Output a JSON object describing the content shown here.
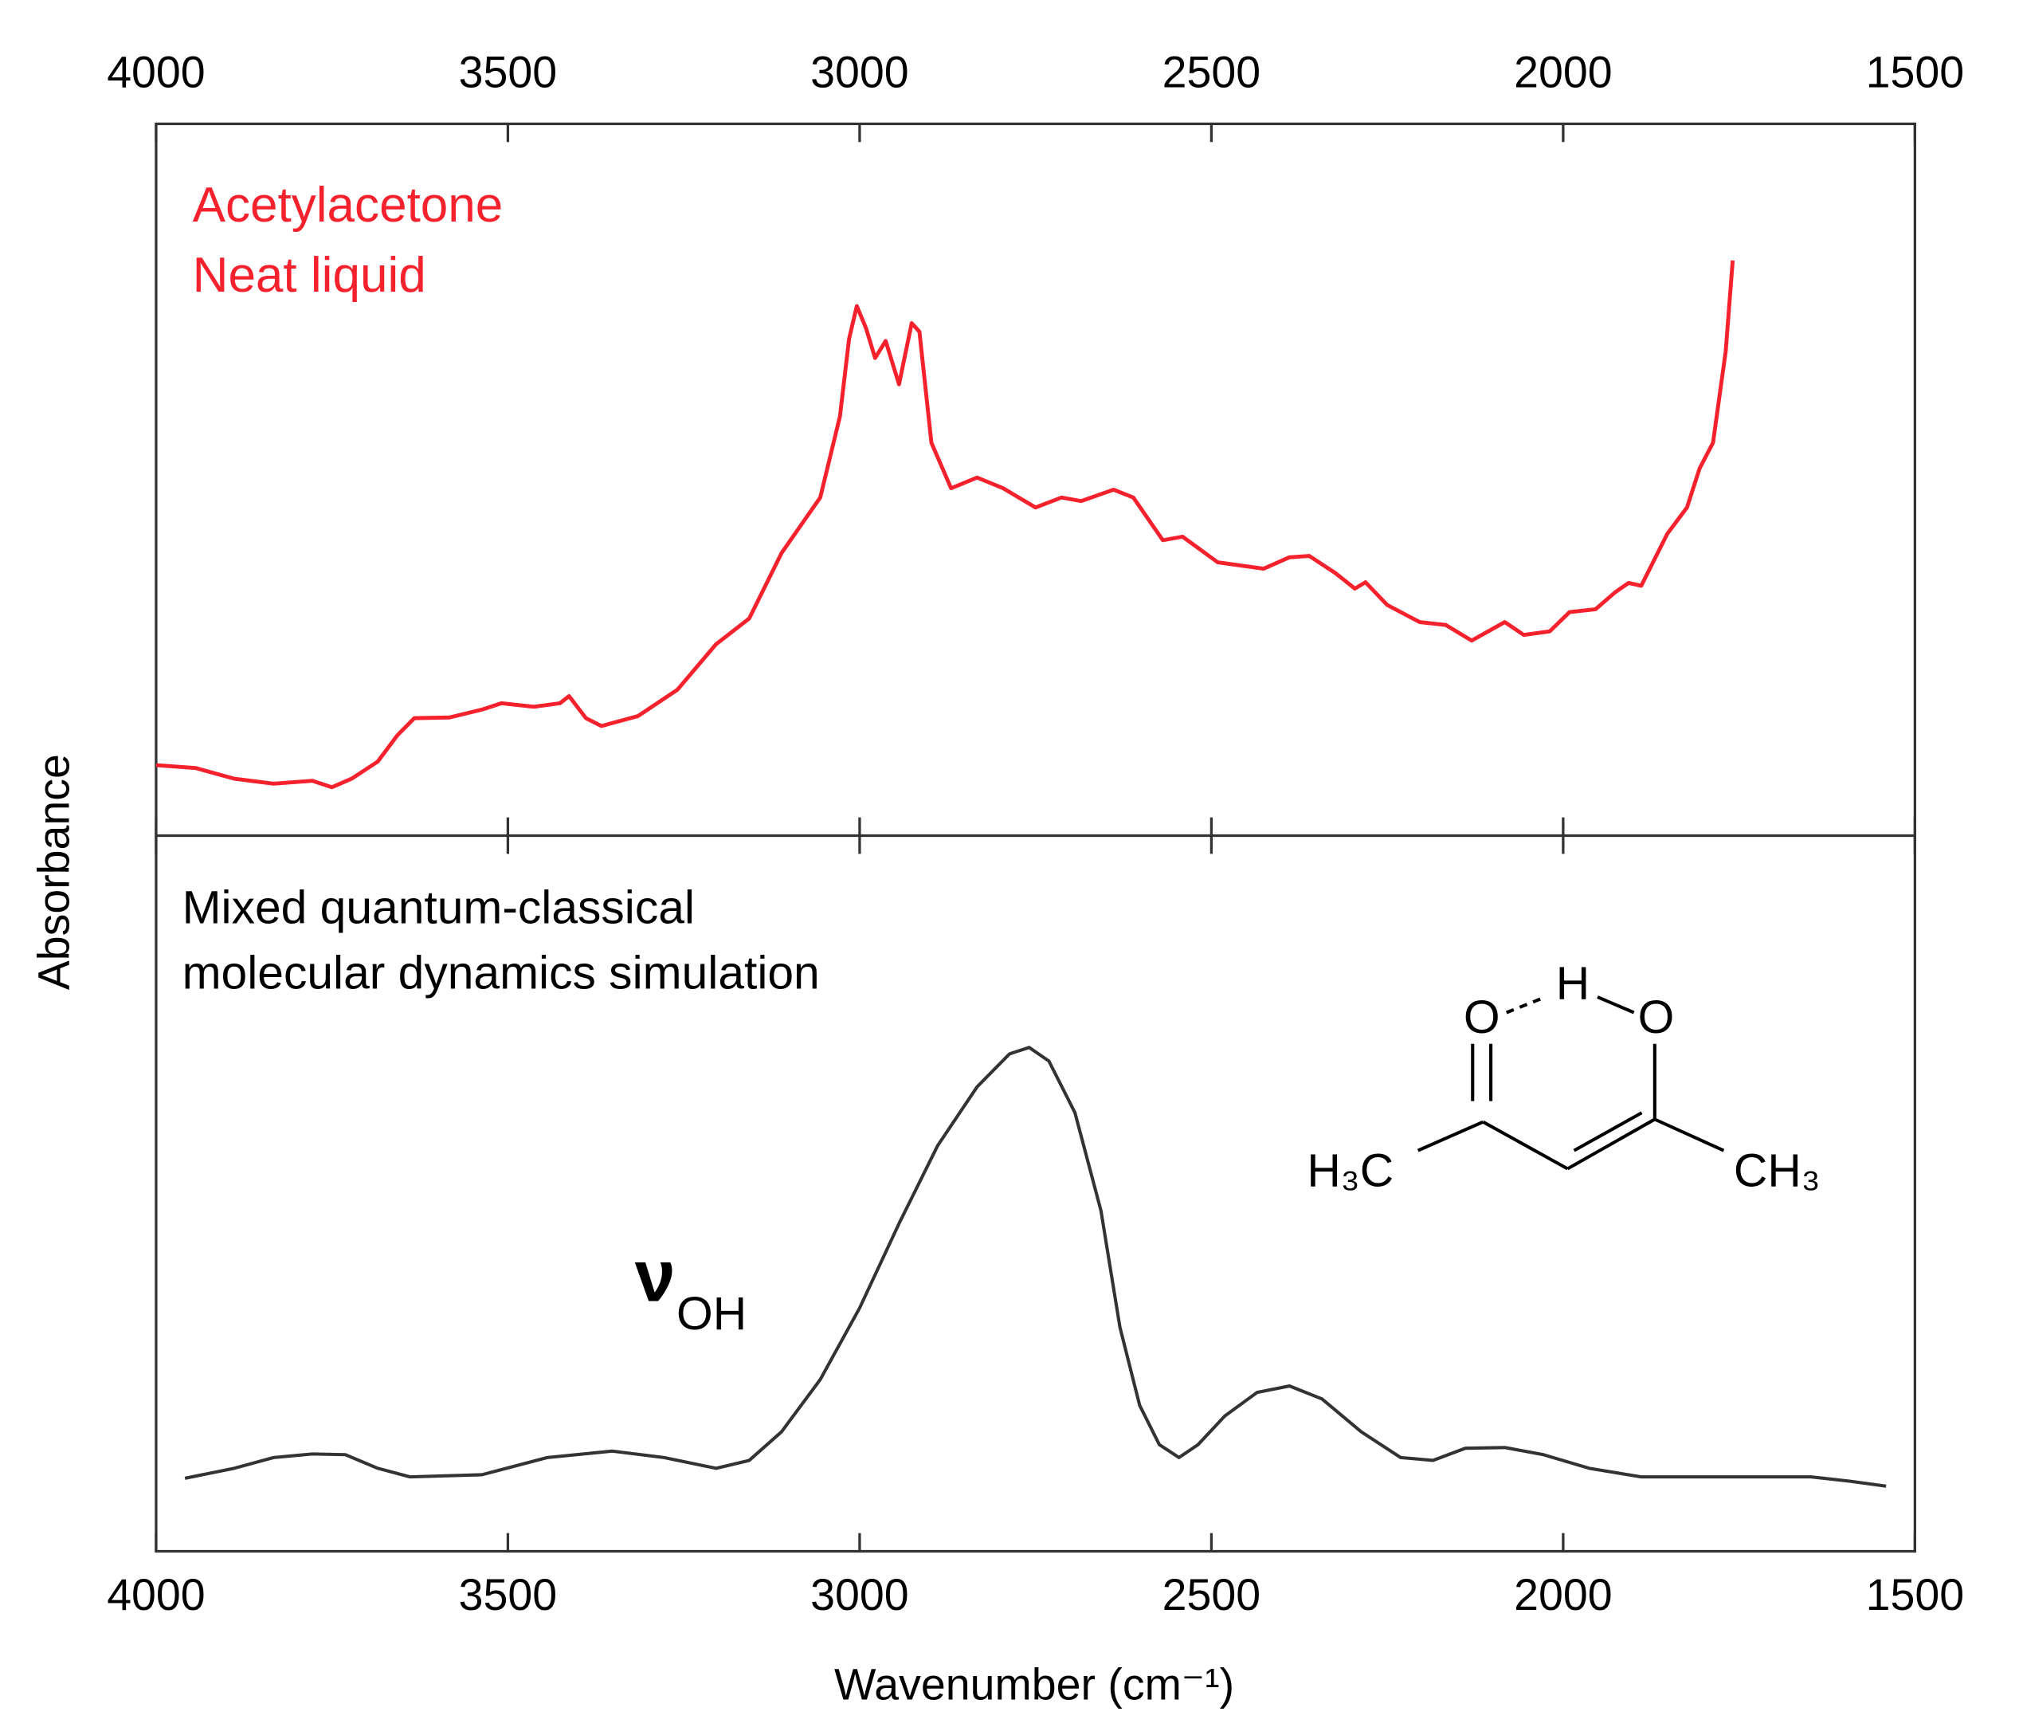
{
  "chart_data": [
    {
      "type": "line",
      "y_label": "Absorbance",
      "annotations": [
        "Acetylacetone",
        "Neat liquid"
      ],
      "xlim": [
        4000,
        1500
      ],
      "xticks": [
        4000,
        3500,
        3000,
        2500,
        2000,
        1500
      ],
      "ylim": [
        0,
        1
      ],
      "series": [
        {
          "name": "Acetylacetone",
          "color": "#f5222d",
          "x": [
            4000,
            3944,
            3889,
            3833,
            3778,
            3750,
            3722,
            3685,
            3657,
            3633,
            3583,
            3537,
            3509,
            3463,
            3426,
            3413,
            3389,
            3367,
            3315,
            3259,
            3204,
            3157,
            3111,
            3056,
            3028,
            3015,
            3004,
            2991,
            2978,
            2963,
            2944,
            2926,
            2915,
            2898,
            2870,
            2833,
            2796,
            2750,
            2713,
            2685,
            2639,
            2611,
            2569,
            2541,
            2491,
            2426,
            2389,
            2361,
            2324,
            2296,
            2281,
            2250,
            2204,
            2167,
            2130,
            2083,
            2056,
            2019,
            1991,
            1954,
            1926,
            1907,
            1889,
            1852,
            1824,
            1806,
            1787,
            1769,
            1759
          ],
          "values": [
            0.099,
            0.095,
            0.08,
            0.073,
            0.077,
            0.068,
            0.08,
            0.104,
            0.141,
            0.165,
            0.166,
            0.177,
            0.186,
            0.181,
            0.186,
            0.196,
            0.165,
            0.154,
            0.168,
            0.205,
            0.269,
            0.305,
            0.397,
            0.475,
            0.589,
            0.698,
            0.744,
            0.713,
            0.671,
            0.695,
            0.634,
            0.72,
            0.708,
            0.552,
            0.488,
            0.503,
            0.488,
            0.461,
            0.475,
            0.47,
            0.486,
            0.475,
            0.415,
            0.42,
            0.384,
            0.375,
            0.391,
            0.393,
            0.369,
            0.347,
            0.356,
            0.324,
            0.3,
            0.296,
            0.274,
            0.3,
            0.282,
            0.287,
            0.314,
            0.318,
            0.342,
            0.355,
            0.351,
            0.424,
            0.461,
            0.516,
            0.552,
            0.68,
            0.808
          ]
        }
      ]
    },
    {
      "type": "line",
      "x_label": "Wavenumber (cm⁻¹)",
      "annotations": [
        "Mixed quantum-classical",
        "molecular dynamics simulation"
      ],
      "mode_label": {
        "symbol": "ν",
        "subscript": "OH"
      },
      "molecule": [
        "O",
        "H",
        "O",
        "H₃C",
        "CH₃"
      ],
      "xlim": [
        4000,
        1500
      ],
      "xticks": [
        4000,
        3500,
        3000,
        2500,
        2000,
        1500
      ],
      "ylim": [
        0,
        1
      ],
      "series": [
        {
          "name": "Mixed quantum-classical molecular dynamics simulation",
          "color": "#333333",
          "x": [
            3959,
            3889,
            3833,
            3778,
            3731,
            3685,
            3639,
            3537,
            3444,
            3352,
            3278,
            3204,
            3157,
            3111,
            3056,
            3000,
            2944,
            2889,
            2833,
            2787,
            2759,
            2731,
            2694,
            2657,
            2630,
            2602,
            2574,
            2546,
            2519,
            2481,
            2435,
            2389,
            2343,
            2287,
            2231,
            2185,
            2139,
            2083,
            2028,
            1963,
            1889,
            1778,
            1648,
            1593,
            1541
          ],
          "values": [
            0.102,
            0.116,
            0.131,
            0.136,
            0.135,
            0.116,
            0.104,
            0.107,
            0.131,
            0.14,
            0.131,
            0.116,
            0.127,
            0.167,
            0.24,
            0.34,
            0.458,
            0.567,
            0.649,
            0.695,
            0.704,
            0.685,
            0.613,
            0.476,
            0.313,
            0.204,
            0.149,
            0.131,
            0.149,
            0.189,
            0.222,
            0.231,
            0.213,
            0.167,
            0.131,
            0.127,
            0.144,
            0.145,
            0.135,
            0.116,
            0.104,
            0.104,
            0.104,
            0.098,
            0.091
          ]
        }
      ]
    }
  ]
}
